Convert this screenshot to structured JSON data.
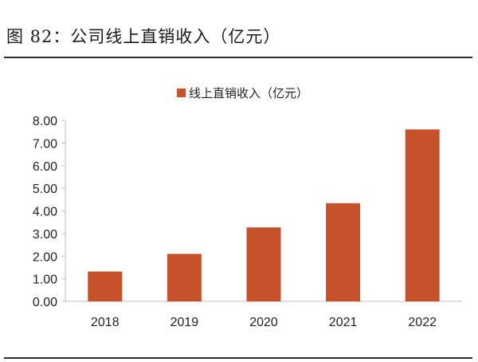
{
  "figure": {
    "title": "图 82：公司线上直销收入（亿元）"
  },
  "colors": {
    "bar": "#c5522a",
    "axis": "#bfbfbf",
    "text": "#222222"
  },
  "chart_data": {
    "type": "bar",
    "title": "",
    "xlabel": "",
    "ylabel": "",
    "categories": [
      "2018",
      "2019",
      "2020",
      "2021",
      "2022"
    ],
    "series": [
      {
        "name": "线上直销收入（亿元）",
        "values": [
          1.32,
          2.1,
          3.27,
          4.34,
          7.6
        ]
      }
    ],
    "ylim": [
      0,
      8
    ],
    "yticks": [
      0,
      1,
      2,
      3,
      4,
      5,
      6,
      7,
      8
    ],
    "ytick_labels": [
      "0.00",
      "1.00",
      "2.00",
      "3.00",
      "4.00",
      "5.00",
      "6.00",
      "7.00",
      "8.00"
    ],
    "grid": false,
    "legend": "top-center"
  }
}
